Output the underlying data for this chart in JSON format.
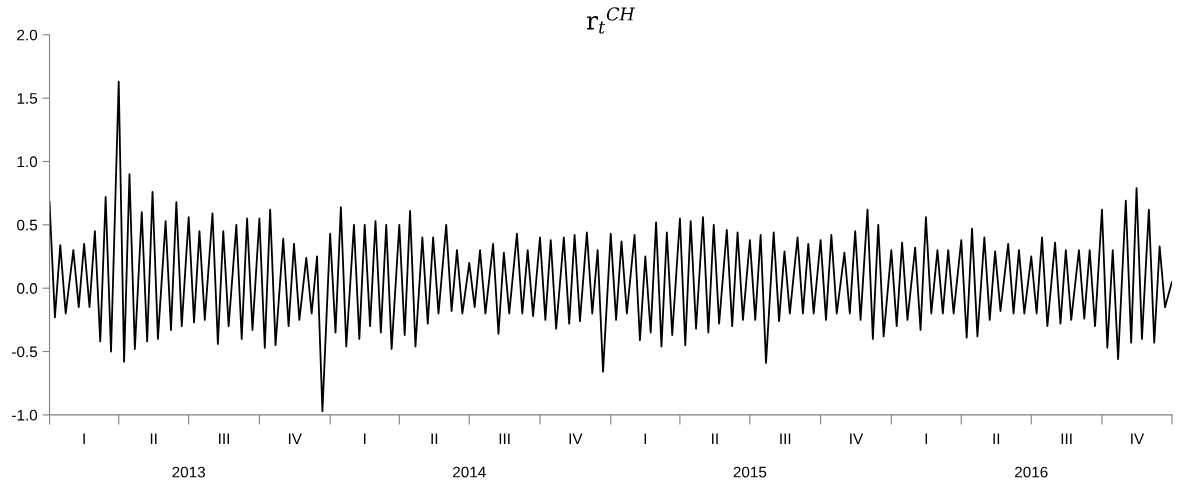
{
  "chart_data": {
    "type": "line",
    "title": "r$_{t}$$^{CH}$",
    "x": [
      "2013-01-01",
      "2013-01-08",
      "2013-01-15",
      "2013-01-22",
      "2013-02-01",
      "2013-02-08",
      "2013-02-15",
      "2013-02-22",
      "2013-03-01",
      "2013-03-08",
      "2013-03-15",
      "2013-03-22",
      "2013-04-01",
      "2013-04-08",
      "2013-04-15",
      "2013-04-22",
      "2013-05-01",
      "2013-05-08",
      "2013-05-15",
      "2013-05-22",
      "2013-06-01",
      "2013-06-08",
      "2013-06-15",
      "2013-06-22",
      "2013-07-01",
      "2013-07-08",
      "2013-07-15",
      "2013-07-22",
      "2013-08-01",
      "2013-08-08",
      "2013-08-15",
      "2013-08-22",
      "2013-09-01",
      "2013-09-08",
      "2013-09-15",
      "2013-09-22",
      "2013-10-01",
      "2013-10-08",
      "2013-10-15",
      "2013-10-22",
      "2013-11-01",
      "2013-11-08",
      "2013-11-15",
      "2013-11-22",
      "2013-12-01",
      "2013-12-08",
      "2013-12-15",
      "2013-12-22",
      "2014-01-01",
      "2014-01-08",
      "2014-01-15",
      "2014-01-22",
      "2014-02-01",
      "2014-02-08",
      "2014-02-15",
      "2014-02-22",
      "2014-03-01",
      "2014-03-08",
      "2014-03-15",
      "2014-03-22",
      "2014-04-01",
      "2014-04-08",
      "2014-04-15",
      "2014-04-22",
      "2014-05-01",
      "2014-05-08",
      "2014-05-15",
      "2014-05-22",
      "2014-06-01",
      "2014-06-08",
      "2014-06-15",
      "2014-06-22",
      "2014-07-01",
      "2014-07-08",
      "2014-07-15",
      "2014-07-22",
      "2014-08-01",
      "2014-08-08",
      "2014-08-15",
      "2014-08-22",
      "2014-09-01",
      "2014-09-08",
      "2014-09-15",
      "2014-09-22",
      "2014-10-01",
      "2014-10-08",
      "2014-10-15",
      "2014-10-22",
      "2014-11-01",
      "2014-11-08",
      "2014-11-15",
      "2014-11-22",
      "2014-12-01",
      "2014-12-08",
      "2014-12-15",
      "2014-12-22",
      "2015-01-01",
      "2015-01-08",
      "2015-01-15",
      "2015-01-22",
      "2015-02-01",
      "2015-02-08",
      "2015-02-15",
      "2015-02-22",
      "2015-03-01",
      "2015-03-08",
      "2015-03-15",
      "2015-03-22",
      "2015-04-01",
      "2015-04-08",
      "2015-04-15",
      "2015-04-22",
      "2015-05-01",
      "2015-05-08",
      "2015-05-15",
      "2015-05-22",
      "2015-06-01",
      "2015-06-08",
      "2015-06-15",
      "2015-06-22",
      "2015-07-01",
      "2015-07-08",
      "2015-07-15",
      "2015-07-22",
      "2015-08-01",
      "2015-08-08",
      "2015-08-15",
      "2015-08-22",
      "2015-09-01",
      "2015-09-08",
      "2015-09-15",
      "2015-09-22",
      "2015-10-01",
      "2015-10-08",
      "2015-10-15",
      "2015-10-22",
      "2015-11-01",
      "2015-11-08",
      "2015-11-15",
      "2015-11-22",
      "2015-12-01",
      "2015-12-08",
      "2015-12-15",
      "2015-12-22",
      "2016-01-01",
      "2016-01-08",
      "2016-01-15",
      "2016-01-22",
      "2016-02-01",
      "2016-02-08",
      "2016-02-15",
      "2016-02-22",
      "2016-03-01",
      "2016-03-08",
      "2016-03-15",
      "2016-03-22",
      "2016-04-01",
      "2016-04-08",
      "2016-04-15",
      "2016-04-22",
      "2016-05-01",
      "2016-05-08",
      "2016-05-15",
      "2016-05-22",
      "2016-06-01",
      "2016-06-08",
      "2016-06-15",
      "2016-06-22",
      "2016-07-01",
      "2016-07-08",
      "2016-07-15",
      "2016-07-22",
      "2016-08-01",
      "2016-08-08",
      "2016-08-15",
      "2016-08-22",
      "2016-09-01",
      "2016-09-08",
      "2016-09-15",
      "2016-09-22",
      "2016-10-01",
      "2016-10-08",
      "2016-10-15",
      "2016-10-22",
      "2016-11-01",
      "2016-11-08",
      "2016-11-15",
      "2016-11-22",
      "2016-12-01",
      "2016-12-08",
      "2016-12-15",
      "2016-12-22",
      "2016-12-31"
    ],
    "series": [
      {
        "color": "#000000",
        "values": [
          0.68,
          -0.23,
          0.34,
          -0.2,
          0.3,
          -0.15,
          0.35,
          -0.15,
          0.45,
          -0.42,
          0.72,
          -0.5,
          1.63,
          -0.58,
          0.9,
          -0.48,
          0.6,
          -0.42,
          0.76,
          -0.4,
          0.53,
          -0.33,
          0.68,
          -0.3,
          0.56,
          -0.27,
          0.45,
          -0.25,
          0.59,
          -0.44,
          0.45,
          -0.3,
          0.5,
          -0.4,
          0.55,
          -0.33,
          0.55,
          -0.47,
          0.62,
          -0.45,
          0.39,
          -0.3,
          0.35,
          -0.25,
          0.24,
          -0.2,
          0.25,
          -0.97,
          0.43,
          -0.35,
          0.64,
          -0.46,
          0.5,
          -0.4,
          0.5,
          -0.3,
          0.53,
          -0.35,
          0.5,
          -0.48,
          0.5,
          -0.37,
          0.61,
          -0.46,
          0.4,
          -0.28,
          0.4,
          -0.2,
          0.5,
          -0.18,
          0.3,
          -0.2,
          0.2,
          -0.15,
          0.3,
          -0.2,
          0.35,
          -0.36,
          0.28,
          -0.2,
          0.43,
          -0.2,
          0.3,
          -0.22,
          0.4,
          -0.25,
          0.38,
          -0.32,
          0.4,
          -0.28,
          0.42,
          -0.26,
          0.44,
          -0.2,
          0.3,
          -0.66,
          0.43,
          -0.25,
          0.37,
          -0.2,
          0.42,
          -0.41,
          0.25,
          -0.35,
          0.52,
          -0.46,
          0.44,
          -0.37,
          0.55,
          -0.45,
          0.53,
          -0.32,
          0.56,
          -0.35,
          0.5,
          -0.28,
          0.46,
          -0.3,
          0.44,
          -0.25,
          0.38,
          -0.25,
          0.42,
          -0.59,
          0.44,
          -0.26,
          0.29,
          -0.2,
          0.4,
          -0.2,
          0.35,
          -0.2,
          0.38,
          -0.25,
          0.42,
          -0.2,
          0.28,
          -0.2,
          0.45,
          -0.25,
          0.62,
          -0.4,
          0.5,
          -0.38,
          0.3,
          -0.3,
          0.36,
          -0.25,
          0.32,
          -0.33,
          0.56,
          -0.2,
          0.3,
          -0.2,
          0.3,
          -0.2,
          0.38,
          -0.39,
          0.47,
          -0.38,
          0.4,
          -0.25,
          0.29,
          -0.18,
          0.35,
          -0.2,
          0.3,
          -0.2,
          0.25,
          -0.2,
          0.4,
          -0.3,
          0.36,
          -0.28,
          0.3,
          -0.25,
          0.3,
          -0.24,
          0.3,
          -0.3,
          0.62,
          -0.47,
          0.3,
          -0.56,
          0.69,
          -0.43,
          0.79,
          -0.4,
          0.62,
          -0.43,
          0.33,
          -0.15,
          0.05
        ]
      }
    ],
    "xlim": [
      "2013-01-01",
      "2016-12-31"
    ],
    "xticks": [
      {
        "value": "2013-01-01",
        "label": null
      },
      {
        "value": "2013-04-01",
        "label": null
      },
      {
        "value": "2013-07-01",
        "label": "2013"
      },
      {
        "value": "2013-10-01",
        "label": null
      },
      {
        "value": "2014-01-01",
        "label": null
      },
      {
        "value": "2014-04-01",
        "label": null
      },
      {
        "value": "2014-07-01",
        "label": "2014"
      },
      {
        "value": "2014-10-01",
        "label": null
      },
      {
        "value": "2015-01-01",
        "label": null
      },
      {
        "value": "2015-04-01",
        "label": null
      },
      {
        "value": "2015-07-01",
        "label": "2015"
      },
      {
        "value": "2015-10-01",
        "label": null
      },
      {
        "value": "2016-01-01",
        "label": null
      },
      {
        "value": "2016-04-01",
        "label": null
      },
      {
        "value": "2016-07-01",
        "label": "2016"
      },
      {
        "value": "2016-10-01",
        "label": null
      },
      {
        "value": "2016-12-31",
        "label": null
      }
    ],
    "annotations": [
      "I",
      "II",
      "III",
      "IV",
      "I",
      "II",
      "III",
      "IV",
      "I",
      "II",
      "III",
      "IV",
      "I",
      "II",
      "III",
      "IV"
    ],
    "ylim": [
      -1.0,
      2.0
    ],
    "yticks": [
      {
        "value": -1.0,
        "label": "-1.0"
      },
      {
        "value": -0.5,
        "label": "-0.5"
      },
      {
        "value": 0.0,
        "label": "0.0"
      },
      {
        "value": 0.5,
        "label": "0.5"
      },
      {
        "value": 1.0,
        "label": "1.0"
      },
      {
        "value": 1.5,
        "label": "1.5"
      },
      {
        "value": 2.0,
        "label": "2.0"
      }
    ],
    "grid": false,
    "legend": false,
    "marker": "none",
    "line_style": "solid"
  }
}
